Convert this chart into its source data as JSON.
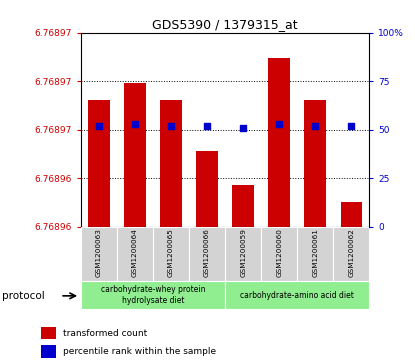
{
  "title": "GDS5390 / 1379315_at",
  "samples": [
    "GSM1200063",
    "GSM1200064",
    "GSM1200065",
    "GSM1200066",
    "GSM1200059",
    "GSM1200060",
    "GSM1200061",
    "GSM1200062"
  ],
  "transformed_counts": [
    6.76897,
    6.768972,
    6.76897,
    6.768964,
    6.76896,
    6.768975,
    6.76897,
    6.768958
  ],
  "percentile_ranks": [
    52,
    53,
    52,
    52,
    51,
    53,
    52,
    52
  ],
  "y_min": 6.768955,
  "y_max": 6.768978,
  "left_ytick_positions": [
    0.0,
    0.25,
    0.5,
    0.75,
    1.0
  ],
  "left_ytick_labels": [
    "6.76896",
    "6.76896",
    "6.76897",
    "6.76897",
    "6.76897"
  ],
  "right_yticks": [
    0,
    25,
    50,
    75,
    100
  ],
  "right_ytick_labels": [
    "0",
    "25",
    "50",
    "75",
    "100%"
  ],
  "bar_color": "#cc0000",
  "dot_color": "#0000cc",
  "bar_width": 0.6,
  "bg_plot": "#ffffff",
  "bg_sample": "#d3d3d3",
  "bg_protocol": "#90ee90",
  "grid_pcts": [
    25,
    50,
    75,
    100
  ],
  "protocol_group1_label": "carbohydrate-whey protein\nhydrolysate diet",
  "protocol_group2_label": "carbohydrate-amino acid diet",
  "legend_label1": "transformed count",
  "legend_label2": "percentile rank within the sample"
}
